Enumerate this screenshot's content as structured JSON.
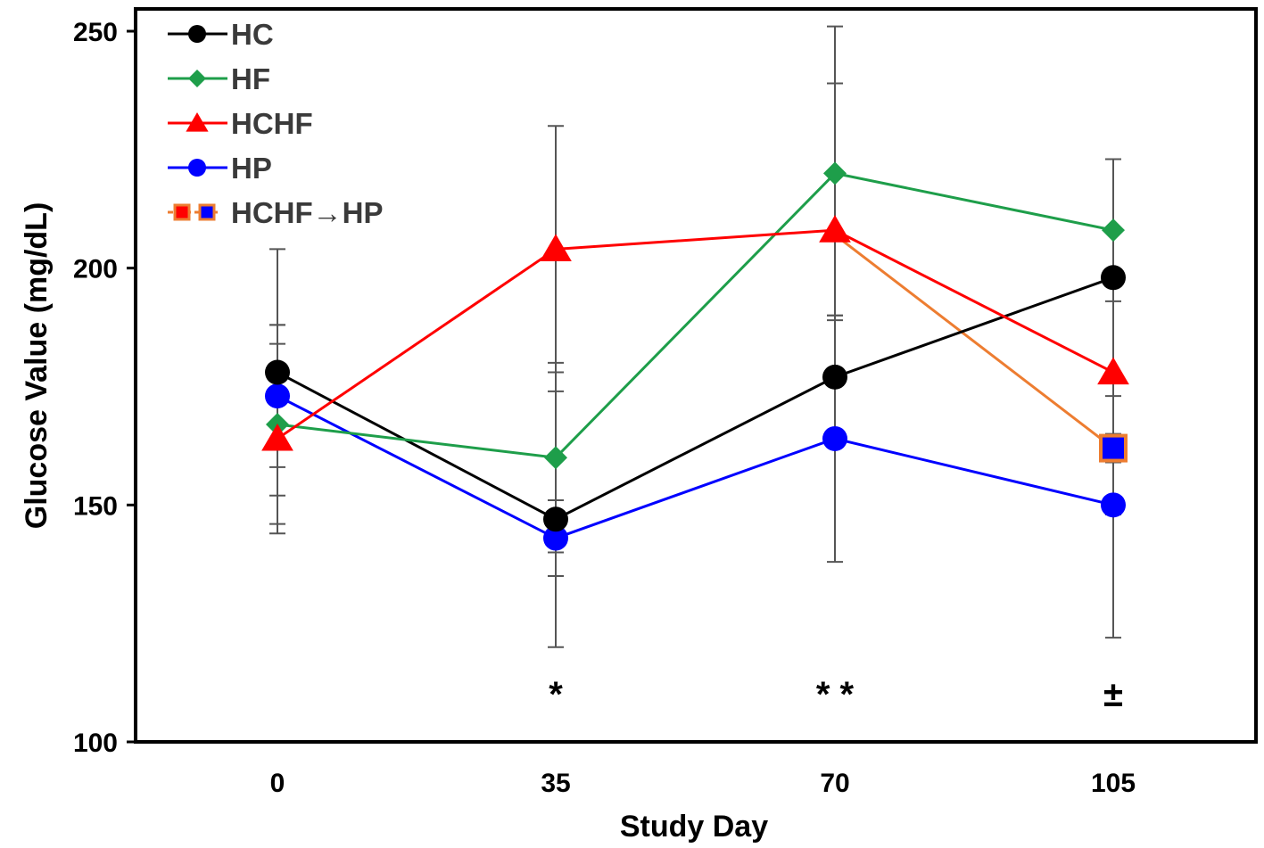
{
  "chart_data": {
    "type": "line",
    "title": "",
    "xlabel": "Study Day",
    "ylabel": "Glucose   Value  (mg/dL)",
    "x": [
      0,
      35,
      70,
      105
    ],
    "x_tick_labels": [
      "0",
      "35",
      "70",
      "105"
    ],
    "y_ticks": [
      100,
      150,
      200,
      250
    ],
    "y_tick_labels": [
      "100",
      "150",
      "200",
      "250"
    ],
    "ylim": [
      100,
      250
    ],
    "grid": false,
    "legend_position": "top-left",
    "series": [
      {
        "name": "HC",
        "color": "#000000",
        "marker": "circle",
        "x": [
          0,
          35,
          70,
          105
        ],
        "values": [
          178,
          147,
          177,
          198
        ],
        "error": [
          26,
          27,
          13,
          25
        ]
      },
      {
        "name": "HF",
        "color": "#1e9e4a",
        "marker": "diamond",
        "x": [
          0,
          35,
          70,
          105
        ],
        "values": [
          167,
          160,
          220,
          208
        ],
        "error": [
          21,
          20,
          31,
          15
        ]
      },
      {
        "name": "HCHF",
        "color": "#ff0000",
        "marker": "triangle",
        "x": [
          0,
          35,
          70,
          105
        ],
        "values": [
          164,
          204,
          208,
          178
        ],
        "error": [
          20,
          26,
          31,
          30
        ]
      },
      {
        "name": "HP",
        "color": "#0000ff",
        "marker": "circle",
        "x": [
          0,
          35,
          70,
          105
        ],
        "values": [
          173,
          143,
          164,
          150
        ],
        "error": [
          15,
          8,
          26,
          28
        ]
      },
      {
        "name": "HCHF→HP",
        "color": "#ed7d31",
        "marker_fill": "#0000ff",
        "marker": "square",
        "x": [
          70,
          105
        ],
        "values": [
          207,
          162
        ],
        "error": [
          null,
          3
        ]
      }
    ],
    "annotations": [
      {
        "x": 35,
        "text": "*"
      },
      {
        "x": 70,
        "text": "* *"
      },
      {
        "x": 105,
        "text": "±"
      }
    ]
  }
}
